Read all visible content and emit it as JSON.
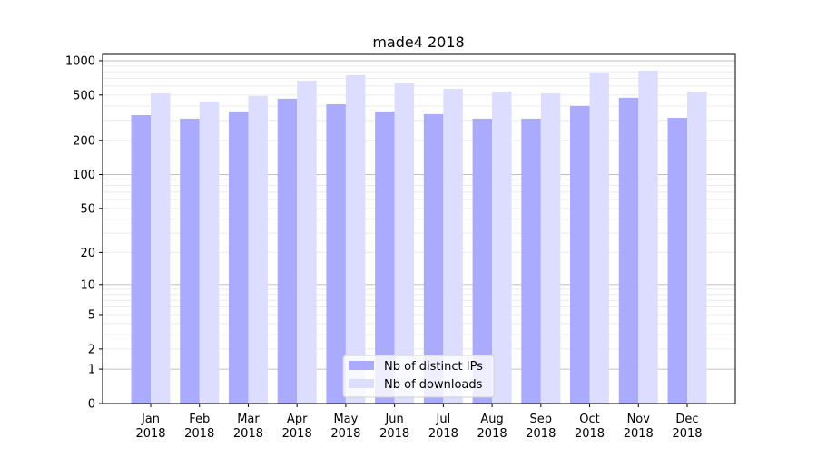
{
  "chart_data": {
    "type": "bar",
    "title": "made4 2018",
    "xlabel": "",
    "ylabel": "",
    "yscale": "log(1+x)",
    "ylim": [
      0,
      1000
    ],
    "yticks": [
      0,
      1,
      2,
      5,
      10,
      20,
      50,
      100,
      200,
      500,
      1000
    ],
    "grid": true,
    "legend_position": "bottom-center",
    "categories": [
      "Jan\n2018",
      "Feb\n2018",
      "Mar\n2018",
      "Apr\n2018",
      "May\n2018",
      "Jun\n2018",
      "Jul\n2018",
      "Aug\n2018",
      "Sep\n2018",
      "Oct\n2018",
      "Nov\n2018",
      "Dec\n2018"
    ],
    "series": [
      {
        "name": "Nb of distinct IPs",
        "color": "#aaaaff",
        "values": [
          333,
          310,
          359,
          464,
          415,
          359,
          340,
          310,
          310,
          401,
          473,
          315
        ]
      },
      {
        "name": "Nb of downloads",
        "color": "#ddddff",
        "values": [
          517,
          439,
          490,
          669,
          746,
          633,
          567,
          537,
          517,
          788,
          818,
          537
        ]
      }
    ]
  }
}
